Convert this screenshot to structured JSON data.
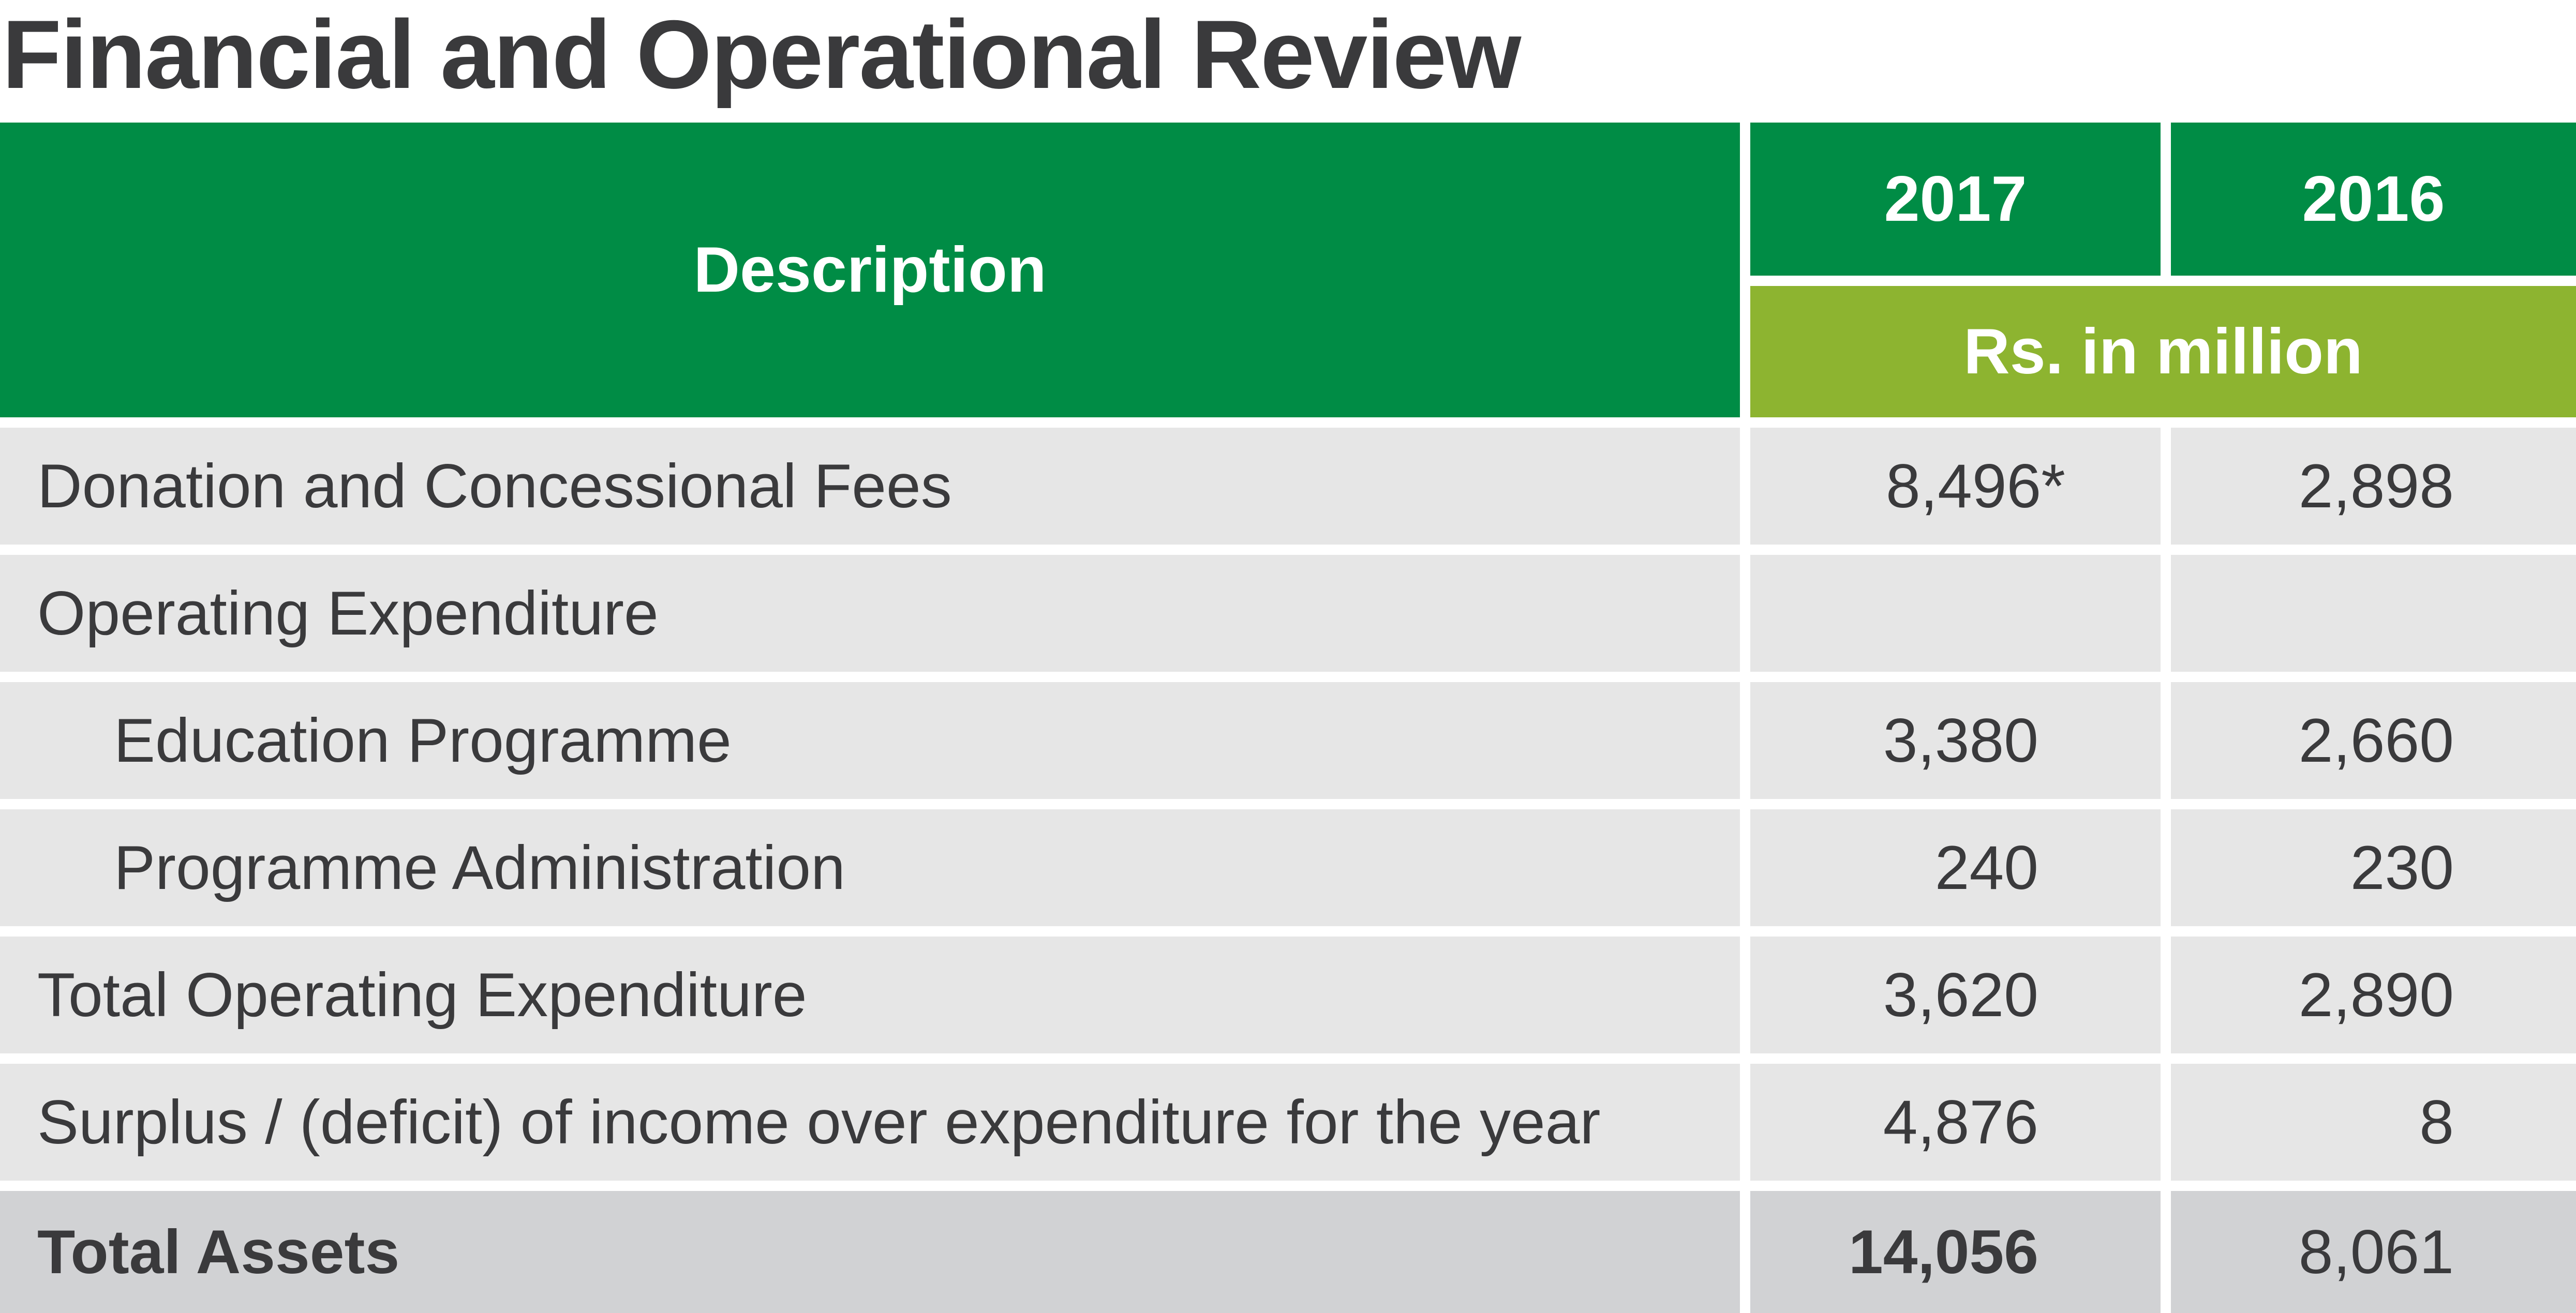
{
  "title": "Financial and Operational Review",
  "table": {
    "header": {
      "description": "Description",
      "years": [
        "2017",
        "2016"
      ],
      "unit": "Rs. in million"
    },
    "rows": [
      {
        "label": "Donation and Concessional Fees",
        "v2017": "8,496*",
        "v2016": "2,898"
      },
      {
        "label": "Operating Expenditure",
        "v2017": "",
        "v2016": ""
      },
      {
        "label": "Education Programme",
        "v2017": "3,380",
        "v2016": "2,660"
      },
      {
        "label": "Programme Administration",
        "v2017": "240",
        "v2016": "230"
      },
      {
        "label": "Total Operating Expenditure",
        "v2017": "3,620",
        "v2016": "2,890"
      },
      {
        "label": "Surplus / (deficit) of income over expenditure for the year",
        "v2017": "4,876",
        "v2016": "8"
      },
      {
        "label": "Total Assets",
        "v2017": "14,056",
        "v2016": "8,061"
      }
    ]
  },
  "colors": {
    "header_green": "#008c45",
    "unit_green": "#8db430",
    "row_grey": "#e6e6e6",
    "total_grey": "#d1d2d4",
    "text": "#3a3a3c"
  }
}
